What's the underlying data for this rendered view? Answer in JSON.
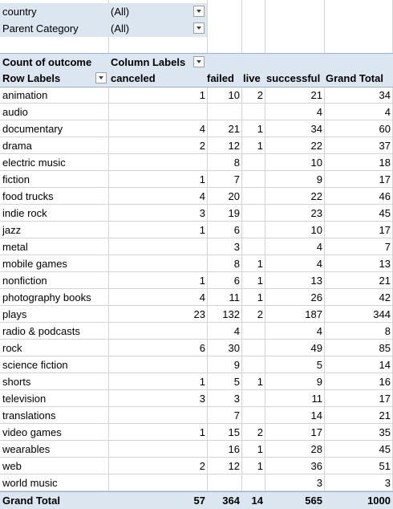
{
  "filters": [
    {
      "label": "country",
      "value": "(All)"
    },
    {
      "label": "Parent Category",
      "value": "(All)"
    }
  ],
  "pivot": {
    "value_header": "Count of outcome",
    "column_labels": "Column Labels",
    "row_labels": "Row Labels",
    "columns": [
      "canceled",
      "failed",
      "live",
      "successful",
      "Grand Total"
    ],
    "rows": [
      {
        "label": "animation",
        "values": [
          "1",
          "10",
          "2",
          "21",
          "34"
        ]
      },
      {
        "label": "audio",
        "values": [
          "",
          "",
          "",
          "4",
          "4"
        ]
      },
      {
        "label": "documentary",
        "values": [
          "4",
          "21",
          "1",
          "34",
          "60"
        ]
      },
      {
        "label": "drama",
        "values": [
          "2",
          "12",
          "1",
          "22",
          "37"
        ]
      },
      {
        "label": "electric music",
        "values": [
          "",
          "8",
          "",
          "10",
          "18"
        ]
      },
      {
        "label": "fiction",
        "values": [
          "1",
          "7",
          "",
          "9",
          "17"
        ]
      },
      {
        "label": "food trucks",
        "values": [
          "4",
          "20",
          "",
          "22",
          "46"
        ]
      },
      {
        "label": "indie rock",
        "values": [
          "3",
          "19",
          "",
          "23",
          "45"
        ]
      },
      {
        "label": "jazz",
        "values": [
          "1",
          "6",
          "",
          "10",
          "17"
        ]
      },
      {
        "label": "metal",
        "values": [
          "",
          "3",
          "",
          "4",
          "7"
        ]
      },
      {
        "label": "mobile games",
        "values": [
          "",
          "8",
          "1",
          "4",
          "13"
        ]
      },
      {
        "label": "nonfiction",
        "values": [
          "1",
          "6",
          "1",
          "13",
          "21"
        ]
      },
      {
        "label": "photography books",
        "values": [
          "4",
          "11",
          "1",
          "26",
          "42"
        ]
      },
      {
        "label": "plays",
        "values": [
          "23",
          "132",
          "2",
          "187",
          "344"
        ]
      },
      {
        "label": "radio & podcasts",
        "values": [
          "",
          "4",
          "",
          "4",
          "8"
        ]
      },
      {
        "label": "rock",
        "values": [
          "6",
          "30",
          "",
          "49",
          "85"
        ]
      },
      {
        "label": "science fiction",
        "values": [
          "",
          "9",
          "",
          "5",
          "14"
        ]
      },
      {
        "label": "shorts",
        "values": [
          "1",
          "5",
          "1",
          "9",
          "16"
        ]
      },
      {
        "label": "television",
        "values": [
          "3",
          "3",
          "",
          "11",
          "17"
        ]
      },
      {
        "label": "translations",
        "values": [
          "",
          "7",
          "",
          "14",
          "21"
        ]
      },
      {
        "label": "video games",
        "values": [
          "1",
          "15",
          "2",
          "17",
          "35"
        ]
      },
      {
        "label": "wearables",
        "values": [
          "",
          "16",
          "1",
          "28",
          "45"
        ]
      },
      {
        "label": "web",
        "values": [
          "2",
          "12",
          "1",
          "36",
          "51"
        ]
      },
      {
        "label": "world music",
        "values": [
          "",
          "",
          "",
          "3",
          "3"
        ]
      }
    ],
    "grand_total": {
      "label": "Grand Total",
      "values": [
        "57",
        "364",
        "14",
        "565",
        "1000"
      ]
    }
  }
}
